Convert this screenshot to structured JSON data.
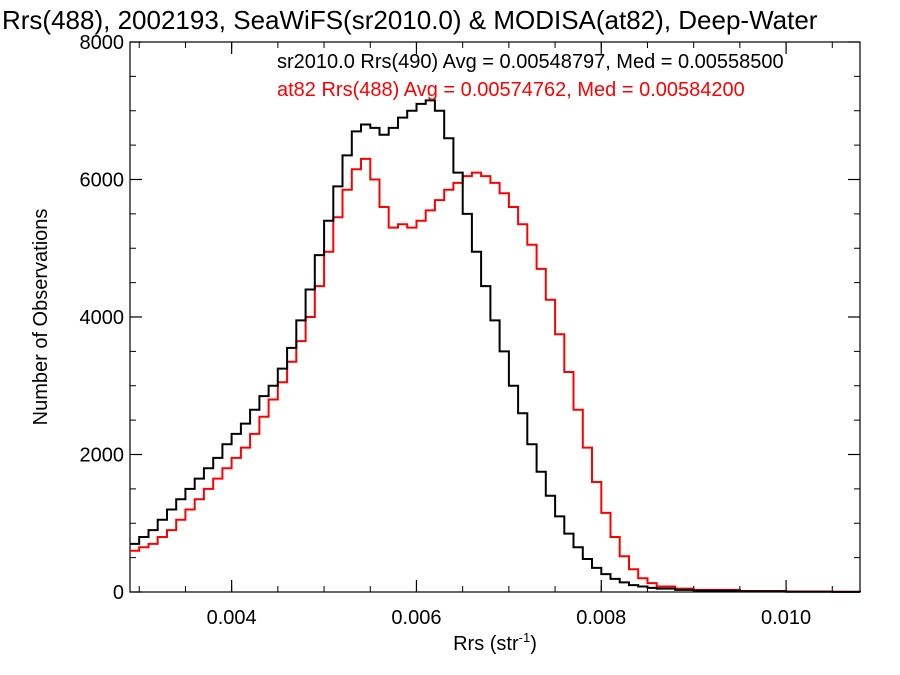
{
  "chart_data": {
    "type": "line",
    "title": "Rrs(488), 2002193, SeaWiFS(sr2010.0) & MODISA(at82), Deep-Water",
    "xlabel_main": "Rrs (str",
    "xlabel_sup": "-1",
    "xlabel_tail": ")",
    "ylabel": "Number of Observations",
    "xlim": [
      0.0029,
      0.0108
    ],
    "ylim": [
      0,
      8000
    ],
    "x_ticks": [
      0.004,
      0.006,
      0.008,
      0.01
    ],
    "x_tick_labels": [
      "0.004",
      "0.006",
      "0.008",
      "0.010"
    ],
    "y_ticks": [
      0,
      2000,
      4000,
      6000,
      8000
    ],
    "y_tick_labels": [
      "0",
      "2000",
      "4000",
      "6000",
      "8000"
    ],
    "grid": false,
    "legend": [
      {
        "text": "sr2010.0 Rrs(490) Avg = 0.00548797, Med = 0.00558500",
        "color": "#000000"
      },
      {
        "text": "at82 Rrs(488) Avg = 0.00574762, Med = 0.00584200",
        "color": "#ff0000"
      }
    ],
    "legend_position": "top-right",
    "series": [
      {
        "name": "sr2010.0 Rrs(490)",
        "color": "#000000",
        "x": [
          0.0029,
          0.003,
          0.0031,
          0.0032,
          0.0033,
          0.0034,
          0.0035,
          0.0036,
          0.0037,
          0.0038,
          0.0039,
          0.004,
          0.0041,
          0.0042,
          0.0043,
          0.0044,
          0.0045,
          0.0046,
          0.0047,
          0.0048,
          0.0049,
          0.005,
          0.0051,
          0.0052,
          0.0053,
          0.0054,
          0.0055,
          0.0056,
          0.0057,
          0.0058,
          0.0059,
          0.006,
          0.0061,
          0.0062,
          0.0063,
          0.0064,
          0.0065,
          0.0066,
          0.0067,
          0.0068,
          0.0069,
          0.007,
          0.0071,
          0.0072,
          0.0073,
          0.0074,
          0.0075,
          0.0076,
          0.0077,
          0.0078,
          0.0079,
          0.008,
          0.0081,
          0.0082,
          0.0083,
          0.0084,
          0.0085,
          0.0086,
          0.0088,
          0.009,
          0.0095,
          0.01,
          0.0105,
          0.0108
        ],
        "y": [
          700,
          800,
          900,
          1050,
          1200,
          1350,
          1500,
          1650,
          1800,
          1950,
          2150,
          2300,
          2450,
          2650,
          2850,
          3000,
          3250,
          3550,
          3950,
          4400,
          4900,
          5400,
          5900,
          6350,
          6700,
          6800,
          6750,
          6650,
          6750,
          6900,
          7000,
          7100,
          7150,
          7000,
          6600,
          6100,
          5500,
          4950,
          4450,
          3950,
          3500,
          3000,
          2600,
          2150,
          1750,
          1400,
          1100,
          850,
          650,
          480,
          350,
          260,
          190,
          140,
          100,
          80,
          60,
          50,
          30,
          20,
          10,
          5,
          2,
          0
        ]
      },
      {
        "name": "at82 Rrs(488)",
        "color": "#ff0000",
        "x": [
          0.0029,
          0.003,
          0.0031,
          0.0032,
          0.0033,
          0.0034,
          0.0035,
          0.0036,
          0.0037,
          0.0038,
          0.0039,
          0.004,
          0.0041,
          0.0042,
          0.0043,
          0.0044,
          0.0045,
          0.0046,
          0.0047,
          0.0048,
          0.0049,
          0.005,
          0.0051,
          0.0052,
          0.0053,
          0.0054,
          0.0055,
          0.0056,
          0.0057,
          0.0058,
          0.0059,
          0.006,
          0.0061,
          0.0062,
          0.0063,
          0.0064,
          0.0065,
          0.0066,
          0.0067,
          0.0068,
          0.0069,
          0.007,
          0.0071,
          0.0072,
          0.0073,
          0.0074,
          0.0075,
          0.0076,
          0.0077,
          0.0078,
          0.0079,
          0.008,
          0.0081,
          0.0082,
          0.0083,
          0.0084,
          0.0085,
          0.0086,
          0.0088,
          0.009,
          0.0095,
          0.01,
          0.0105,
          0.0108
        ],
        "y": [
          600,
          650,
          700,
          800,
          900,
          1050,
          1200,
          1350,
          1500,
          1650,
          1800,
          1950,
          2100,
          2300,
          2550,
          2800,
          3050,
          3350,
          3650,
          4000,
          4450,
          4950,
          5450,
          5850,
          6150,
          6300,
          6000,
          5600,
          5300,
          5350,
          5300,
          5400,
          5550,
          5700,
          5850,
          5950,
          6050,
          6100,
          6050,
          5950,
          5800,
          5600,
          5350,
          5050,
          4700,
          4250,
          3750,
          3200,
          2650,
          2100,
          1600,
          1150,
          800,
          520,
          330,
          200,
          130,
          80,
          50,
          30,
          15,
          8,
          4,
          2
        ]
      }
    ]
  }
}
